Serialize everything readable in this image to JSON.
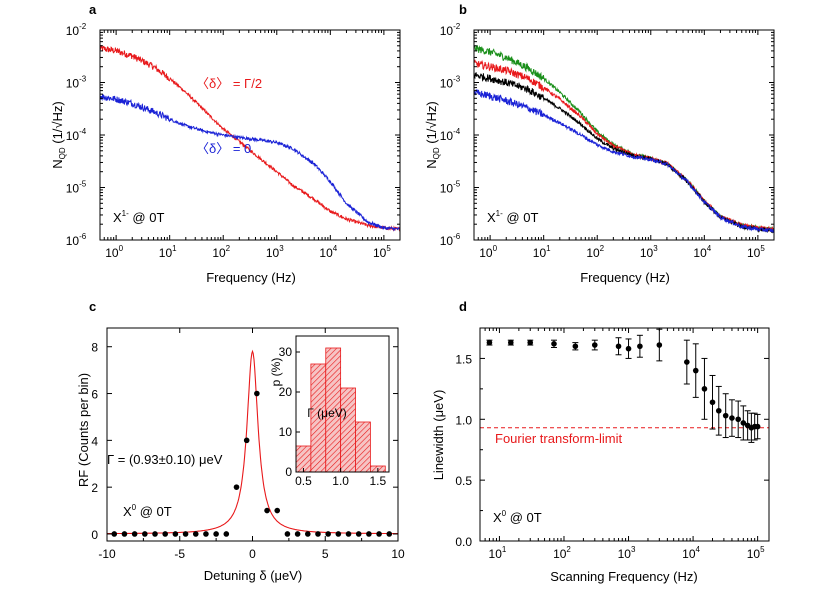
{
  "chart_data": [
    {
      "panel": "a",
      "type": "line",
      "xscale": "log",
      "yscale": "log",
      "xlabel": "Frequency (Hz)",
      "ylabel": {
        "main": "N",
        "sub": "QD",
        "unit": " (1/√Hz)"
      },
      "xlim": [
        0.5,
        200000
      ],
      "ylim": [
        1e-06,
        0.01
      ],
      "xtick_mant": [
        "10",
        "10",
        "10",
        "10",
        "10",
        "10"
      ],
      "xtick_exp": [
        "0",
        "1",
        "2",
        "3",
        "4",
        "5"
      ],
      "ytick_mant": [
        "10",
        "10",
        "10",
        "10",
        "10"
      ],
      "ytick_exp": [
        "-6",
        "-5",
        "-4",
        "-3",
        "-2"
      ],
      "annotation": {
        "main": "X",
        "sup": "1-",
        "rest": " @ 0T"
      },
      "series": [
        {
          "name": "〈δ〉 = Γ/2",
          "color": "#e8191b",
          "x": [
            0.5,
            1,
            2,
            5,
            10,
            20,
            50,
            100,
            200,
            500,
            1000,
            2000,
            5000,
            10000,
            20000,
            50000,
            100000,
            200000
          ],
          "y": [
            0.0045,
            0.004,
            0.0032,
            0.002,
            0.0012,
            0.00065,
            0.00026,
            0.00013,
            7.5e-05,
            3.5e-05,
            2e-05,
            1.1e-05,
            6e-06,
            3.5e-06,
            2.5e-06,
            1.9e-06,
            1.7e-06,
            1.6e-06
          ]
        },
        {
          "name": "〈δ〉 = 0",
          "color": "#1a22d6",
          "x": [
            0.5,
            1,
            2,
            5,
            10,
            20,
            50,
            100,
            200,
            500,
            1000,
            2000,
            5000,
            10000,
            20000,
            50000,
            100000,
            200000
          ],
          "y": [
            0.00055,
            0.00048,
            0.0004,
            0.00028,
            0.0002,
            0.00015,
            0.000115,
            0.0001,
            9e-05,
            8e-05,
            7.2e-05,
            5.5e-05,
            2.8e-05,
            1.3e-05,
            5e-06,
            2.2e-06,
            1.7e-06,
            1.6e-06
          ]
        }
      ],
      "legend_labels": [
        "〈δ〉 = Γ/2",
        "〈δ〉 = 0"
      ]
    },
    {
      "panel": "b",
      "type": "line",
      "xscale": "log",
      "yscale": "log",
      "xlabel": "Frequency (Hz)",
      "ylabel": {
        "main": "N",
        "sub": "QD",
        "unit": " (1/√Hz)"
      },
      "xlim": [
        0.5,
        200000
      ],
      "ylim": [
        1e-06,
        0.01
      ],
      "xtick_mant": [
        "10",
        "10",
        "10",
        "10",
        "10",
        "10"
      ],
      "xtick_exp": [
        "0",
        "1",
        "2",
        "3",
        "4",
        "5"
      ],
      "ytick_mant": [
        "10",
        "10",
        "10",
        "10",
        "10"
      ],
      "ytick_exp": [
        "-6",
        "-5",
        "-4",
        "-3",
        "-2"
      ],
      "annotation": {
        "main": "X",
        "sup": "1-",
        "rest": " @ 0T"
      },
      "series": [
        {
          "name": "green",
          "color": "#1a8f1a",
          "x": [
            0.5,
            1,
            2,
            5,
            10,
            20,
            50,
            100,
            200,
            500,
            1000,
            2000,
            5000,
            10000,
            20000,
            50000,
            100000,
            200000
          ],
          "y": [
            0.0045,
            0.0038,
            0.003,
            0.0019,
            0.0012,
            0.00065,
            0.00026,
            0.000115,
            6.5e-05,
            4.2e-05,
            3.6e-05,
            2.9e-05,
            1.3e-05,
            5.5e-06,
            2.8e-06,
            1.9e-06,
            1.7e-06,
            1.6e-06
          ]
        },
        {
          "name": "red",
          "color": "#e8191b",
          "x": [
            0.5,
            1,
            2,
            5,
            10,
            20,
            50,
            100,
            200,
            500,
            1000,
            2000,
            5000,
            10000,
            20000,
            50000,
            100000,
            200000
          ],
          "y": [
            0.0023,
            0.002,
            0.0017,
            0.0012,
            0.0008,
            0.00048,
            0.00022,
            0.000105,
            6.2e-05,
            4.1e-05,
            3.6e-05,
            2.9e-05,
            1.3e-05,
            5.5e-06,
            2.8e-06,
            1.9e-06,
            1.7e-06,
            1.6e-06
          ]
        },
        {
          "name": "black",
          "color": "#000000",
          "x": [
            0.5,
            1,
            2,
            5,
            10,
            20,
            50,
            100,
            200,
            500,
            1000,
            2000,
            5000,
            10000,
            20000,
            50000,
            100000,
            200000
          ],
          "y": [
            0.0014,
            0.0012,
            0.001,
            0.00075,
            0.0005,
            0.00032,
            0.00016,
            8.5e-05,
            5.5e-05,
            4e-05,
            3.5e-05,
            2.8e-05,
            1.25e-05,
            5.3e-06,
            2.7e-06,
            1.8e-06,
            1.6e-06,
            1.5e-06
          ]
        },
        {
          "name": "blue",
          "color": "#1a22d6",
          "x": [
            0.5,
            1,
            2,
            5,
            10,
            20,
            50,
            100,
            200,
            500,
            1000,
            2000,
            5000,
            10000,
            20000,
            50000,
            100000,
            200000
          ],
          "y": [
            0.00065,
            0.00055,
            0.00045,
            0.00033,
            0.00024,
            0.00017,
            0.0001,
            6.5e-05,
            4.8e-05,
            3.8e-05,
            3.4e-05,
            2.8e-05,
            1.25e-05,
            5.3e-06,
            2.7e-06,
            1.8e-06,
            1.6e-06,
            1.5e-06
          ]
        }
      ]
    },
    {
      "panel": "c",
      "type": "scatter",
      "xlabel": "Detuning δ (μeV)",
      "ylabel": "RF (Counts per bin)",
      "xlim": [
        -10,
        10
      ],
      "ylim": [
        -0.3,
        8.8
      ],
      "xticks": [
        "-10",
        "-5",
        "0",
        "5",
        "10"
      ],
      "yticks": [
        "0",
        "2",
        "4",
        "6",
        "8"
      ],
      "points_x": [
        -9.5,
        -8.8,
        -8.1,
        -7.4,
        -6.7,
        -6.0,
        -5.3,
        -4.6,
        -3.9,
        -3.2,
        -2.5,
        -1.8,
        -1.1,
        -0.4,
        0.3,
        1.0,
        1.7,
        2.4,
        3.1,
        3.8,
        4.5,
        5.2,
        5.9,
        6.6,
        7.3,
        8.0,
        8.7,
        9.4
      ],
      "points_y": [
        0,
        0,
        0,
        0,
        0,
        0,
        0,
        0,
        0,
        0,
        0,
        0,
        2.0,
        4.0,
        6.0,
        1.0,
        1.0,
        0,
        0,
        0,
        0,
        0,
        0,
        0,
        0,
        0,
        0,
        0
      ],
      "fit": {
        "type": "lorentzian",
        "center": 0.0,
        "fwhm": 0.93,
        "amplitude": 7.8,
        "color": "#e8191b"
      },
      "fit_label": "Γ = (0.93±0.10) μeV",
      "annotation": {
        "main": "X",
        "sup": "0",
        "rest": " @ 0T"
      },
      "inset": {
        "type": "histogram",
        "xlabel": "Γ (μeV)",
        "ylabel": "p (%)",
        "xticks": [
          "0.5",
          "1.0",
          "1.5"
        ],
        "yticks": [
          "0",
          "10",
          "20",
          "30"
        ],
        "xlim": [
          0.4,
          1.65
        ],
        "ylim": [
          0,
          34
        ],
        "bins": [
          0.4,
          0.6,
          0.8,
          1.0,
          1.2,
          1.4,
          1.6
        ],
        "values": [
          6.5,
          27,
          31,
          21,
          12.5,
          1.5
        ],
        "color": "#e8191b"
      }
    },
    {
      "panel": "d",
      "type": "scatter",
      "xscale": "log",
      "xlabel": "Scanning Frequency (Hz)",
      "ylabel": "Linewidth (μeV)",
      "xlim": [
        5,
        150000
      ],
      "ylim": [
        0.0,
        1.75
      ],
      "xtick_mant": [
        "10",
        "10",
        "10",
        "10",
        "10"
      ],
      "xtick_exp": [
        "1",
        "2",
        "3",
        "4",
        "5"
      ],
      "yticks": [
        "0.0",
        "0.5",
        "1.0",
        "1.5"
      ],
      "x": [
        7,
        15,
        30,
        70,
        150,
        300,
        700,
        1000,
        1500,
        3000,
        8000,
        11000,
        15000,
        20000,
        25000,
        32000,
        40000,
        50000,
        60000,
        70000,
        80000,
        90000,
        100000
      ],
      "y": [
        1.63,
        1.63,
        1.63,
        1.62,
        1.6,
        1.61,
        1.6,
        1.58,
        1.6,
        1.61,
        1.47,
        1.4,
        1.25,
        1.14,
        1.07,
        1.03,
        1.01,
        1.0,
        0.97,
        0.95,
        0.93,
        0.94,
        0.94
      ],
      "err": [
        0.02,
        0.02,
        0.02,
        0.03,
        0.03,
        0.04,
        0.07,
        0.08,
        0.09,
        0.13,
        0.18,
        0.22,
        0.25,
        0.22,
        0.2,
        0.18,
        0.15,
        0.15,
        0.14,
        0.12,
        0.12,
        0.11,
        0.1
      ],
      "reference": {
        "value": 0.93,
        "label": "Fourier transform-limit",
        "color": "#e8191b"
      },
      "annotation": {
        "main": "X",
        "sup": "0",
        "rest": " @ 0T"
      }
    }
  ]
}
